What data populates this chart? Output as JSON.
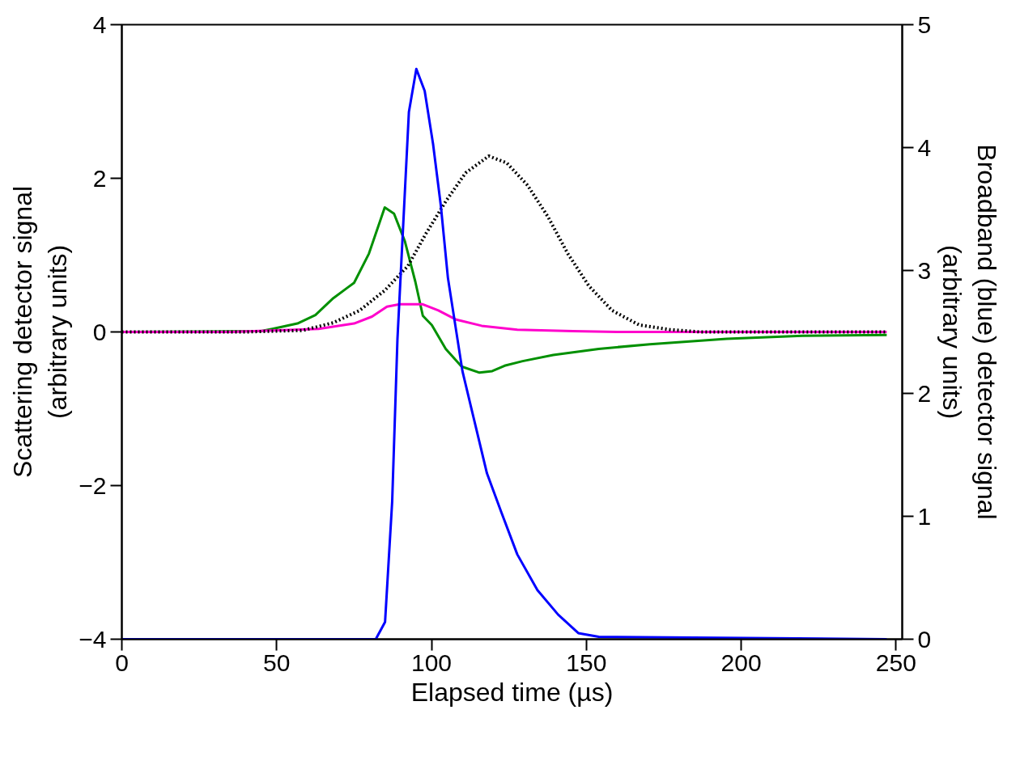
{
  "chart_data": {
    "type": "line",
    "xlabel": "Elapsed time (µs)",
    "ylabel": "Scattering detector signal\n(arbitrary units)",
    "y2label": "Broadband (blue) detector signal\n(arbitrary units)",
    "xlim": [
      0,
      252
    ],
    "xticks": [
      0,
      50,
      100,
      150,
      200,
      250
    ],
    "ylim": [
      -4,
      4
    ],
    "yticks": [
      -4,
      -2,
      0,
      2,
      4
    ],
    "y2lim": [
      0,
      5
    ],
    "y2ticks": [
      0,
      1,
      2,
      3,
      4,
      5
    ],
    "series": [
      {
        "color": "#009000",
        "line_style": "solid",
        "x": [
          0,
          45,
          48.6,
          56.7,
          62.5,
          68.3,
          73,
          75,
          79.8,
          84.9,
          87.9,
          91.4,
          94.8,
          97.2,
          100.1,
          104.6,
          109.7,
          115.5,
          119.6,
          123.6,
          129.4,
          139.3,
          154,
          170.5,
          195.3,
          219.8,
          247
        ],
        "values": [
          0,
          0.01,
          0.04,
          0.11,
          0.22,
          0.44,
          0.58,
          0.64,
          1.02,
          1.62,
          1.54,
          1.18,
          0.65,
          0.21,
          0.09,
          -0.22,
          -0.45,
          -0.53,
          -0.51,
          -0.44,
          -0.38,
          -0.3,
          -0.22,
          -0.16,
          -0.09,
          -0.05,
          -0.04
        ]
      },
      {
        "color": "#ff00cc",
        "line_style": "solid",
        "x": [
          0,
          35,
          63.5,
          75,
          80.8,
          85.6,
          89.7,
          97.2,
          102.2,
          108,
          116.2,
          127.7,
          145.7,
          160,
          247
        ],
        "values": [
          0,
          0,
          0.04,
          0.11,
          0.2,
          0.33,
          0.36,
          0.36,
          0.28,
          0.16,
          0.08,
          0.03,
          0.01,
          0,
          0
        ]
      },
      {
        "color": "#000000",
        "line_style": "dotted",
        "x": [
          0,
          40,
          58.4,
          68.3,
          76.8,
          84.9,
          92.4,
          98.2,
          104.6,
          111,
          118.5,
          124.3,
          131,
          137.6,
          144,
          150.8,
          158.3,
          167.1,
          177,
          186.8,
          247
        ],
        "values": [
          0,
          0,
          0.02,
          0.12,
          0.28,
          0.54,
          0.86,
          1.28,
          1.7,
          2.07,
          2.29,
          2.2,
          1.91,
          1.5,
          1.02,
          0.6,
          0.28,
          0.09,
          0.03,
          0,
          0
        ]
      },
      {
        "color": "#0000ff",
        "line_style": "solid",
        "axis": "y2",
        "x": [
          0,
          82,
          85,
          87.3,
          89,
          92.7,
          95.1,
          97.8,
          100.5,
          103,
          105.3,
          110,
          113.8,
          117.9,
          122.6,
          127.7,
          134.2,
          140.9,
          147.4,
          154,
          247
        ],
        "values": [
          0,
          0,
          0.14,
          1.12,
          2.44,
          4.29,
          4.64,
          4.46,
          4.03,
          3.53,
          2.94,
          2.18,
          1.78,
          1.35,
          1.03,
          0.69,
          0.4,
          0.2,
          0.05,
          0.02,
          0
        ]
      }
    ]
  }
}
